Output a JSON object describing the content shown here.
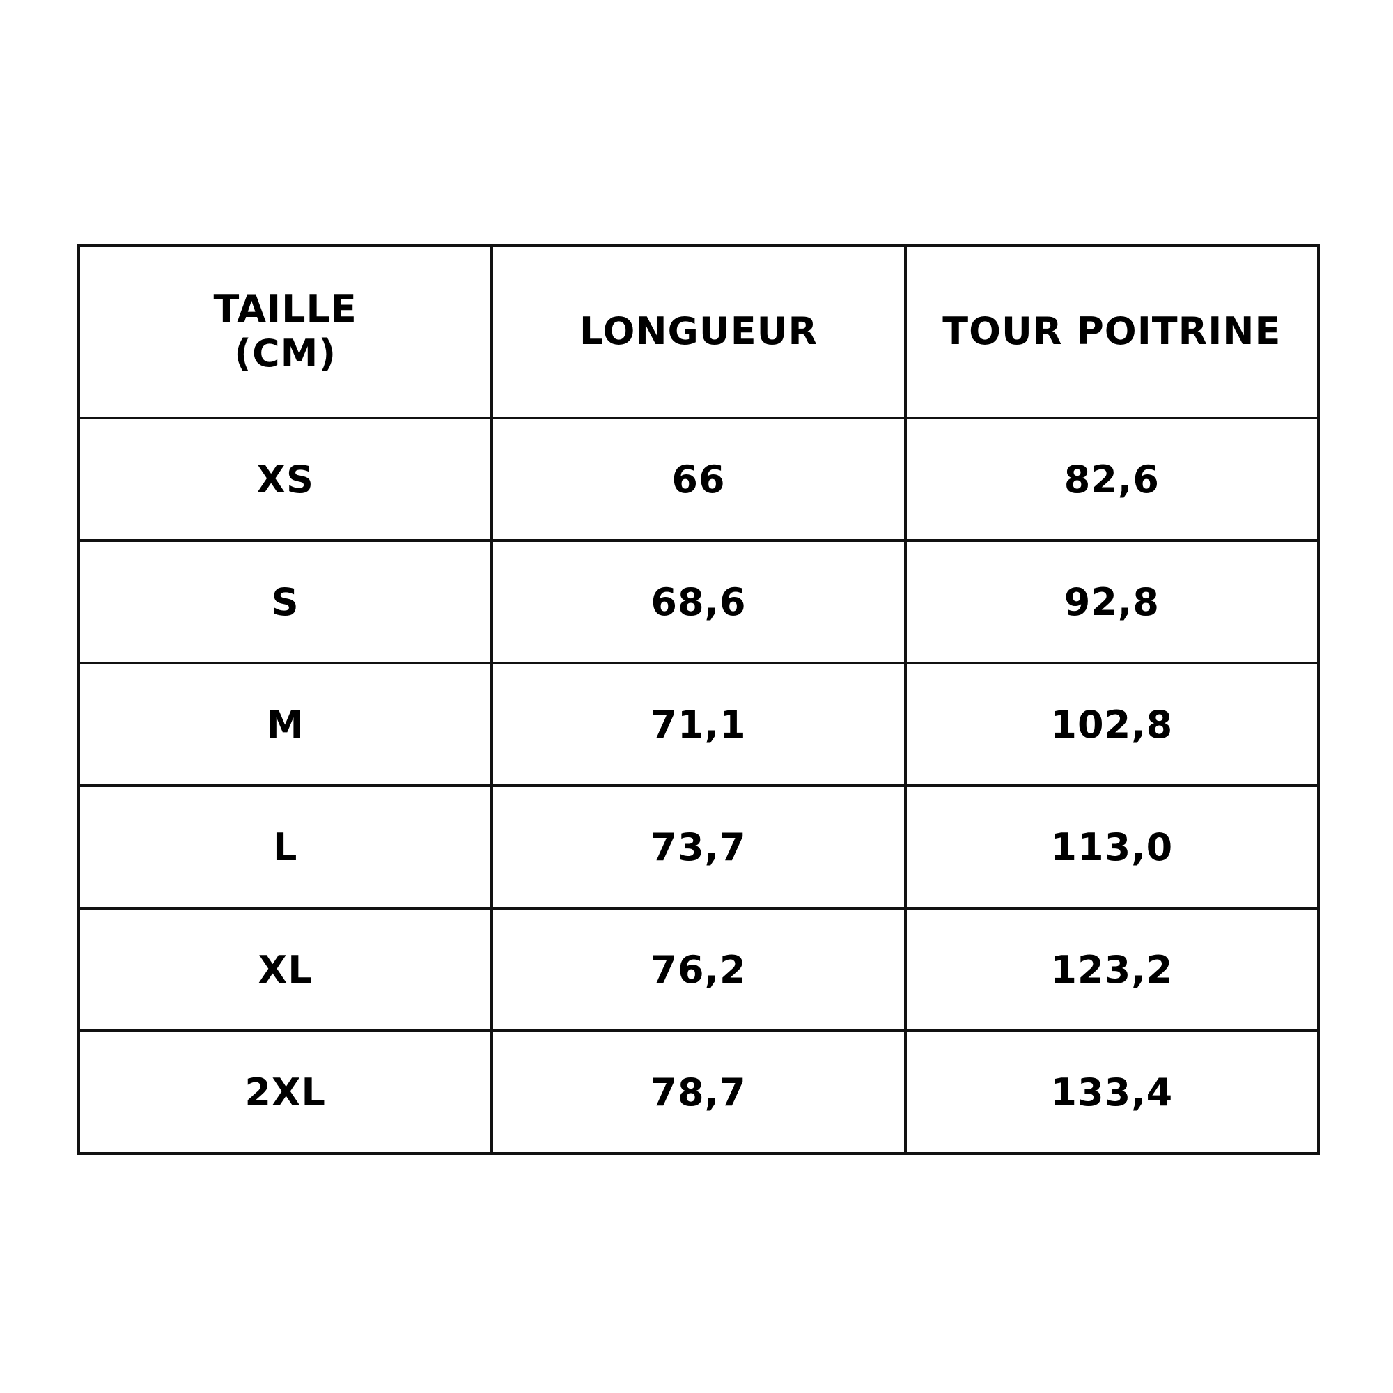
{
  "table": {
    "headers": [
      {
        "lines": [
          "TAILLE",
          "(CM)"
        ]
      },
      {
        "lines": [
          "LONGUEUR"
        ]
      },
      {
        "lines": [
          "TOUR POITRINE"
        ]
      }
    ],
    "rows": [
      [
        "XS",
        "66",
        "82,6"
      ],
      [
        "S",
        "68,6",
        "92,8"
      ],
      [
        "M",
        "71,1",
        "102,8"
      ],
      [
        "L",
        "73,7",
        "113,0"
      ],
      [
        "XL",
        "76,2",
        "123,2"
      ],
      [
        "2XL",
        "78,7",
        "133,4"
      ]
    ]
  }
}
